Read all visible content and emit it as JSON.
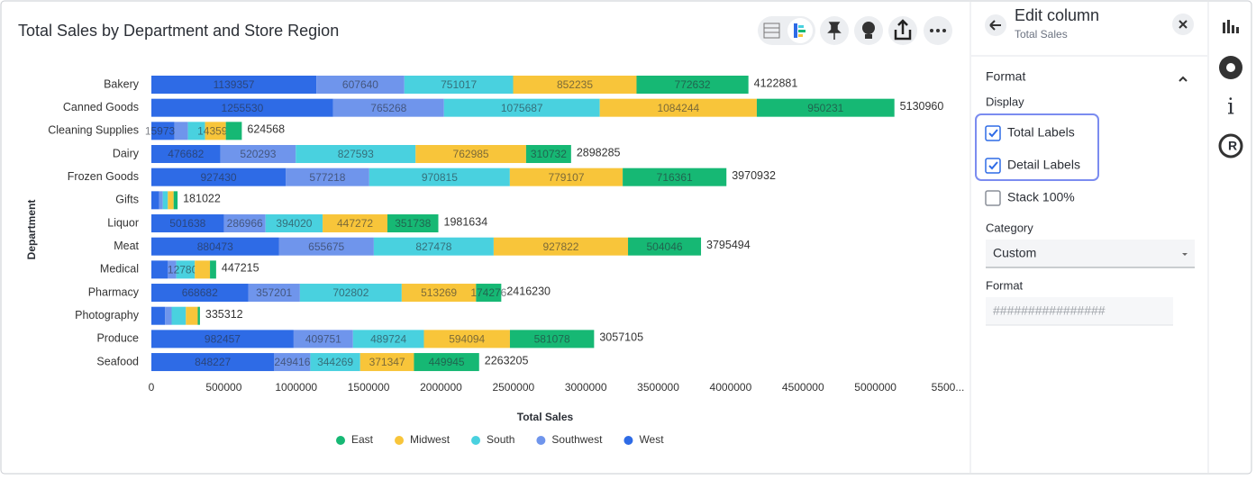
{
  "chart_data": {
    "type": "bar",
    "orientation": "horizontal",
    "stacked": true,
    "title": "Total Sales by Department and Store Region",
    "x_label": "Total Sales",
    "y_label": "Department",
    "categories": [
      "Bakery",
      "Canned Goods",
      "Cleaning Supplies",
      "Dairy",
      "Frozen Goods",
      "Gifts",
      "Liquor",
      "Meat",
      "Medical",
      "Pharmacy",
      "Photography",
      "Produce",
      "Seafood"
    ],
    "series": [
      {
        "name": "East",
        "color": "#16b874",
        "values": [
          772632,
          950231,
          110238,
          310732,
          716361,
          27259,
          351738,
          504046,
          42408,
          174276,
          15091,
          581078,
          449945
        ]
      },
      {
        "name": "Midwest",
        "color": "#f8c53a",
        "values": [
          852235,
          1084244,
          143592,
          762985,
          779107,
          40000,
          447272,
          927822,
          105000,
          513269,
          82000,
          594094,
          371347
        ]
      },
      {
        "name": "South",
        "color": "#49d1df",
        "values": [
          751017,
          1075687,
          118000,
          827593,
          970815,
          35000,
          394020,
          827478,
          127807,
          702802,
          98221,
          489724,
          344269
        ]
      },
      {
        "name": "Southwest",
        "color": "#6f95ec",
        "values": [
          607640,
          765268,
          93000,
          520293,
          577218,
          25000,
          286966,
          655675,
          60000,
          357201,
          45000,
          409751,
          249416
        ]
      },
      {
        "name": "West",
        "color": "#2e6be6",
        "values": [
          1139357,
          1255530,
          159738,
          476682,
          927430,
          53763,
          501638,
          880473,
          112000,
          668682,
          95000,
          982457,
          848227
        ]
      }
    ],
    "totals": [
      4122881,
      5130960,
      624568,
      2898285,
      3970932,
      181022,
      1981634,
      3795494,
      447215,
      2416230,
      335312,
      3057105,
      2263205
    ],
    "xlim": [
      0,
      5500000
    ],
    "xticks": [
      0,
      500000,
      1000000,
      1500000,
      2000000,
      2500000,
      3000000,
      3500000,
      4000000,
      4500000,
      5000000,
      {
        "value": 5500000,
        "label": "5500..."
      }
    ],
    "legend": "bottom"
  },
  "panel": {
    "title": "Edit column",
    "subtitle": "Total Sales",
    "section": "Format",
    "display_label": "Display",
    "options": [
      {
        "label": "Total Labels",
        "checked": true
      },
      {
        "label": "Detail Labels",
        "checked": true
      },
      {
        "label": "Stack 100%",
        "checked": false
      }
    ],
    "category_label": "Category",
    "category_value": "Custom",
    "format_label": "Format",
    "format_placeholder": "################"
  }
}
